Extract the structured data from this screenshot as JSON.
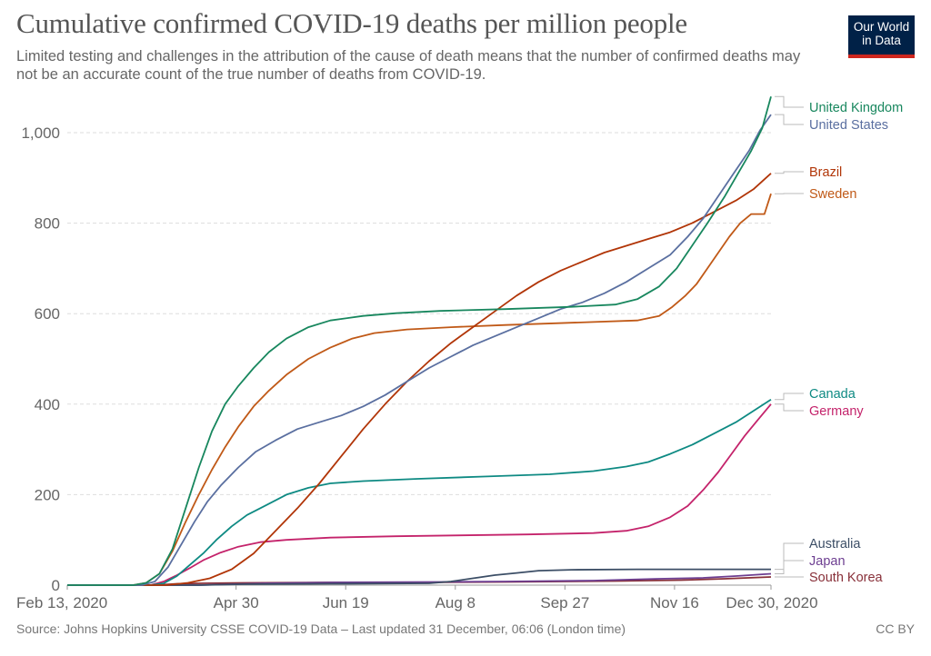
{
  "header": {
    "title": "Cumulative confirmed COVID-19 deaths per million people",
    "subtitle": "Limited testing and challenges in the attribution of the cause of death means that the number of confirmed deaths may not be an accurate count of the true number of deaths from COVID-19.",
    "logo_line1": "Our World",
    "logo_line2": "in Data"
  },
  "footer": {
    "source": "Source: Johns Hopkins University CSSE COVID-19 Data – Last updated 31 December, 06:06 (London time)",
    "license": "CC BY"
  },
  "colors": {
    "logo_bg": "#002147",
    "logo_accent": "#ce261e",
    "grid": "#dddddd",
    "axis_text": "#666666"
  },
  "chart_data": {
    "type": "line",
    "title": "Cumulative confirmed COVID-19 deaths per million people",
    "xlabel": "",
    "ylabel": "",
    "x_start_date": "2020-02-13",
    "x_unit": "days since Feb 13, 2020",
    "xlim": [
      0,
      321
    ],
    "ylim": [
      0,
      1000
    ],
    "yticks": [
      0,
      200,
      400,
      600,
      800,
      1000
    ],
    "ytick_labels": [
      "0",
      "200",
      "400",
      "600",
      "800",
      "1,000"
    ],
    "xticks": [
      0,
      77,
      127,
      177,
      227,
      277,
      321
    ],
    "xtick_labels": [
      "Feb 13, 2020",
      "Apr 30",
      "Jun 19",
      "Aug 8",
      "Sep 27",
      "Nov 16",
      "Dec 30, 2020"
    ],
    "grid": "horizontal-dashed",
    "legend": "right",
    "series": [
      {
        "name": "United Kingdom",
        "color": "#18875e",
        "points": [
          [
            0,
            0
          ],
          [
            30,
            0
          ],
          [
            36,
            5
          ],
          [
            42,
            25
          ],
          [
            48,
            80
          ],
          [
            54,
            170
          ],
          [
            60,
            260
          ],
          [
            66,
            340
          ],
          [
            72,
            400
          ],
          [
            78,
            440
          ],
          [
            85,
            480
          ],
          [
            92,
            515
          ],
          [
            100,
            545
          ],
          [
            110,
            570
          ],
          [
            120,
            585
          ],
          [
            135,
            595
          ],
          [
            150,
            601
          ],
          [
            170,
            606
          ],
          [
            200,
            610
          ],
          [
            230,
            615
          ],
          [
            250,
            620
          ],
          [
            260,
            632
          ],
          [
            270,
            660
          ],
          [
            278,
            700
          ],
          [
            285,
            750
          ],
          [
            292,
            800
          ],
          [
            300,
            860
          ],
          [
            306,
            910
          ],
          [
            312,
            960
          ],
          [
            317,
            1010
          ],
          [
            321,
            1080
          ]
        ]
      },
      {
        "name": "United States",
        "color": "#5a6fa0",
        "points": [
          [
            0,
            0
          ],
          [
            34,
            0
          ],
          [
            40,
            8
          ],
          [
            46,
            40
          ],
          [
            52,
            90
          ],
          [
            58,
            140
          ],
          [
            64,
            185
          ],
          [
            70,
            220
          ],
          [
            78,
            260
          ],
          [
            86,
            295
          ],
          [
            95,
            320
          ],
          [
            105,
            345
          ],
          [
            115,
            360
          ],
          [
            125,
            375
          ],
          [
            135,
            395
          ],
          [
            145,
            420
          ],
          [
            155,
            450
          ],
          [
            165,
            480
          ],
          [
            175,
            505
          ],
          [
            185,
            530
          ],
          [
            195,
            550
          ],
          [
            205,
            570
          ],
          [
            215,
            590
          ],
          [
            225,
            610
          ],
          [
            235,
            625
          ],
          [
            245,
            645
          ],
          [
            255,
            670
          ],
          [
            265,
            700
          ],
          [
            275,
            730
          ],
          [
            283,
            770
          ],
          [
            290,
            810
          ],
          [
            297,
            860
          ],
          [
            304,
            910
          ],
          [
            311,
            960
          ],
          [
            316,
            1005
          ],
          [
            321,
            1040
          ]
        ]
      },
      {
        "name": "Brazil",
        "color": "#b13507",
        "points": [
          [
            0,
            0
          ],
          [
            45,
            0
          ],
          [
            55,
            5
          ],
          [
            65,
            15
          ],
          [
            75,
            35
          ],
          [
            85,
            70
          ],
          [
            95,
            120
          ],
          [
            105,
            170
          ],
          [
            115,
            225
          ],
          [
            125,
            285
          ],
          [
            135,
            345
          ],
          [
            145,
            400
          ],
          [
            155,
            450
          ],
          [
            165,
            495
          ],
          [
            175,
            535
          ],
          [
            185,
            570
          ],
          [
            195,
            605
          ],
          [
            205,
            640
          ],
          [
            215,
            670
          ],
          [
            225,
            695
          ],
          [
            235,
            715
          ],
          [
            245,
            735
          ],
          [
            255,
            750
          ],
          [
            265,
            765
          ],
          [
            275,
            780
          ],
          [
            285,
            800
          ],
          [
            295,
            825
          ],
          [
            305,
            850
          ],
          [
            313,
            875
          ],
          [
            321,
            910
          ]
        ]
      },
      {
        "name": "Sweden",
        "color": "#c05917",
        "points": [
          [
            0,
            0
          ],
          [
            30,
            0
          ],
          [
            36,
            5
          ],
          [
            42,
            25
          ],
          [
            48,
            75
          ],
          [
            54,
            140
          ],
          [
            60,
            200
          ],
          [
            66,
            255
          ],
          [
            72,
            305
          ],
          [
            78,
            350
          ],
          [
            85,
            395
          ],
          [
            92,
            430
          ],
          [
            100,
            465
          ],
          [
            110,
            500
          ],
          [
            120,
            525
          ],
          [
            130,
            545
          ],
          [
            140,
            557
          ],
          [
            155,
            565
          ],
          [
            175,
            570
          ],
          [
            200,
            575
          ],
          [
            230,
            580
          ],
          [
            260,
            585
          ],
          [
            270,
            595
          ],
          [
            276,
            615
          ],
          [
            282,
            640
          ],
          [
            287,
            665
          ],
          [
            292,
            700
          ],
          [
            297,
            735
          ],
          [
            302,
            770
          ],
          [
            307,
            800
          ],
          [
            312,
            820
          ],
          [
            318,
            820
          ],
          [
            321,
            865
          ]
        ]
      },
      {
        "name": "Canada",
        "color": "#0e8a83",
        "points": [
          [
            0,
            0
          ],
          [
            38,
            0
          ],
          [
            44,
            4
          ],
          [
            50,
            20
          ],
          [
            56,
            45
          ],
          [
            62,
            70
          ],
          [
            68,
            100
          ],
          [
            75,
            130
          ],
          [
            82,
            155
          ],
          [
            90,
            175
          ],
          [
            100,
            200
          ],
          [
            110,
            215
          ],
          [
            120,
            225
          ],
          [
            135,
            230
          ],
          [
            160,
            235
          ],
          [
            190,
            240
          ],
          [
            220,
            245
          ],
          [
            240,
            252
          ],
          [
            255,
            262
          ],
          [
            265,
            272
          ],
          [
            275,
            290
          ],
          [
            285,
            310
          ],
          [
            295,
            335
          ],
          [
            305,
            360
          ],
          [
            313,
            385
          ],
          [
            321,
            410
          ]
        ]
      },
      {
        "name": "Germany",
        "color": "#c4236b",
        "points": [
          [
            0,
            0
          ],
          [
            38,
            0
          ],
          [
            44,
            8
          ],
          [
            50,
            22
          ],
          [
            56,
            38
          ],
          [
            62,
            55
          ],
          [
            70,
            72
          ],
          [
            78,
            85
          ],
          [
            88,
            95
          ],
          [
            100,
            100
          ],
          [
            120,
            105
          ],
          [
            150,
            108
          ],
          [
            180,
            110
          ],
          [
            210,
            112
          ],
          [
            240,
            115
          ],
          [
            255,
            120
          ],
          [
            265,
            130
          ],
          [
            275,
            150
          ],
          [
            283,
            175
          ],
          [
            290,
            210
          ],
          [
            297,
            250
          ],
          [
            303,
            290
          ],
          [
            309,
            330
          ],
          [
            315,
            365
          ],
          [
            321,
            400
          ]
        ]
      },
      {
        "name": "Australia",
        "color": "#3c4e66",
        "points": [
          [
            0,
            0
          ],
          [
            60,
            0
          ],
          [
            80,
            2
          ],
          [
            120,
            3
          ],
          [
            165,
            4
          ],
          [
            175,
            8
          ],
          [
            185,
            15
          ],
          [
            195,
            22
          ],
          [
            205,
            27
          ],
          [
            215,
            32
          ],
          [
            230,
            34
          ],
          [
            260,
            35
          ],
          [
            321,
            35
          ]
        ]
      },
      {
        "name": "Japan",
        "color": "#6d3e91",
        "points": [
          [
            0,
            0
          ],
          [
            60,
            0
          ],
          [
            75,
            2
          ],
          [
            90,
            4
          ],
          [
            120,
            6
          ],
          [
            170,
            7
          ],
          [
            200,
            8
          ],
          [
            240,
            10
          ],
          [
            270,
            14
          ],
          [
            290,
            16
          ],
          [
            305,
            20
          ],
          [
            321,
            25
          ]
        ]
      },
      {
        "name": "South Korea",
        "color": "#883039",
        "points": [
          [
            0,
            0
          ],
          [
            40,
            0
          ],
          [
            50,
            3
          ],
          [
            60,
            4
          ],
          [
            80,
            5
          ],
          [
            120,
            6
          ],
          [
            160,
            6
          ],
          [
            200,
            7
          ],
          [
            250,
            9
          ],
          [
            280,
            11
          ],
          [
            300,
            14
          ],
          [
            321,
            18
          ]
        ]
      }
    ]
  }
}
